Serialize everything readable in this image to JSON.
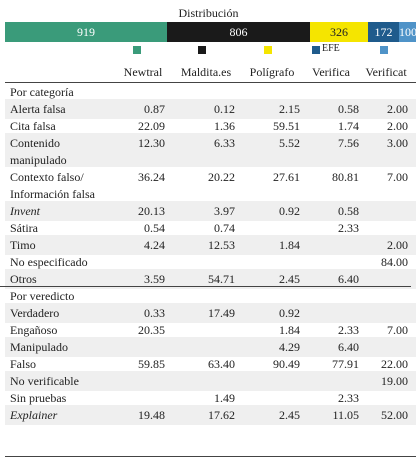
{
  "distribution": {
    "title": "Distribución",
    "segments": [
      {
        "label": "919",
        "color": "#3a9b7a",
        "text_color": "#ffffff"
      },
      {
        "label": "806",
        "color": "#1a1a1a",
        "text_color": "#ffffff"
      },
      {
        "label": "326",
        "color": "#f5e500",
        "text_color": "#222222"
      },
      {
        "label": "172",
        "color": "#1f5b8c",
        "text_color": "#ffffff"
      },
      {
        "label": "100",
        "color": "#4f93c8",
        "text_color": "#ffffff"
      }
    ]
  },
  "legend": {
    "efe_label": "EFE",
    "colors": [
      "#3a9b7a",
      "#1a1a1a",
      "#f5e500",
      "#1f5b8c",
      "#4f93c8"
    ]
  },
  "columns": [
    "Newtral",
    "Maldita.es",
    "Polígrafo",
    "Verifica",
    "Verificat"
  ],
  "sections": [
    {
      "title": "Por categoría",
      "rows": [
        {
          "label": "Alerta falsa",
          "values": [
            "0.87",
            "0.12",
            "2.15",
            "0.58",
            "2.00"
          ]
        },
        {
          "label": "Cita falsa",
          "values": [
            "22.09",
            "1.36",
            "59.51",
            "1.74",
            "2.00"
          ]
        },
        {
          "label": "Contenido",
          "label2": "manipulado",
          "values": [
            "12.30",
            "6.33",
            "5.52",
            "7.56",
            "3.00"
          ]
        },
        {
          "label": "Contexto falso/",
          "label2": "Información falsa",
          "values": [
            "36.24",
            "20.22",
            "27.61",
            "80.81",
            "7.00"
          ]
        },
        {
          "label": "Invent",
          "italic": true,
          "values": [
            "20.13",
            "3.97",
            "0.92",
            "0.58",
            ""
          ]
        },
        {
          "label": "Sátira",
          "values": [
            "0.54",
            "0.74",
            "",
            "2.33",
            ""
          ]
        },
        {
          "label": "Timo",
          "values": [
            "4.24",
            "12.53",
            "1.84",
            "",
            "2.00"
          ]
        },
        {
          "label": "No especificado",
          "values": [
            "",
            "",
            "",
            "",
            "84.00"
          ]
        },
        {
          "label": "Otros",
          "values": [
            "3.59",
            "54.71",
            "2.45",
            "6.40",
            ""
          ]
        }
      ]
    },
    {
      "title": "Por veredicto",
      "rows": [
        {
          "label": "Verdadero",
          "values": [
            "0.33",
            "17.49",
            "0.92",
            "",
            ""
          ]
        },
        {
          "label": "Engañoso",
          "values": [
            "20.35",
            "",
            "1.84",
            "2.33",
            "7.00"
          ]
        },
        {
          "label": "Manipulado",
          "values": [
            "",
            "",
            "4.29",
            "6.40",
            ""
          ]
        },
        {
          "label": "Falso",
          "values": [
            "59.85",
            "63.40",
            "90.49",
            "77.91",
            "22.00"
          ]
        },
        {
          "label": "No verificable",
          "values": [
            "",
            "",
            "",
            "",
            "19.00"
          ]
        },
        {
          "label": "Sin pruebas",
          "values": [
            "",
            "1.49",
            "",
            "2.33",
            ""
          ]
        },
        {
          "label": "Explainer",
          "italic": true,
          "values": [
            "19.48",
            "17.62",
            "2.45",
            "11.05",
            "52.00"
          ]
        }
      ]
    }
  ]
}
